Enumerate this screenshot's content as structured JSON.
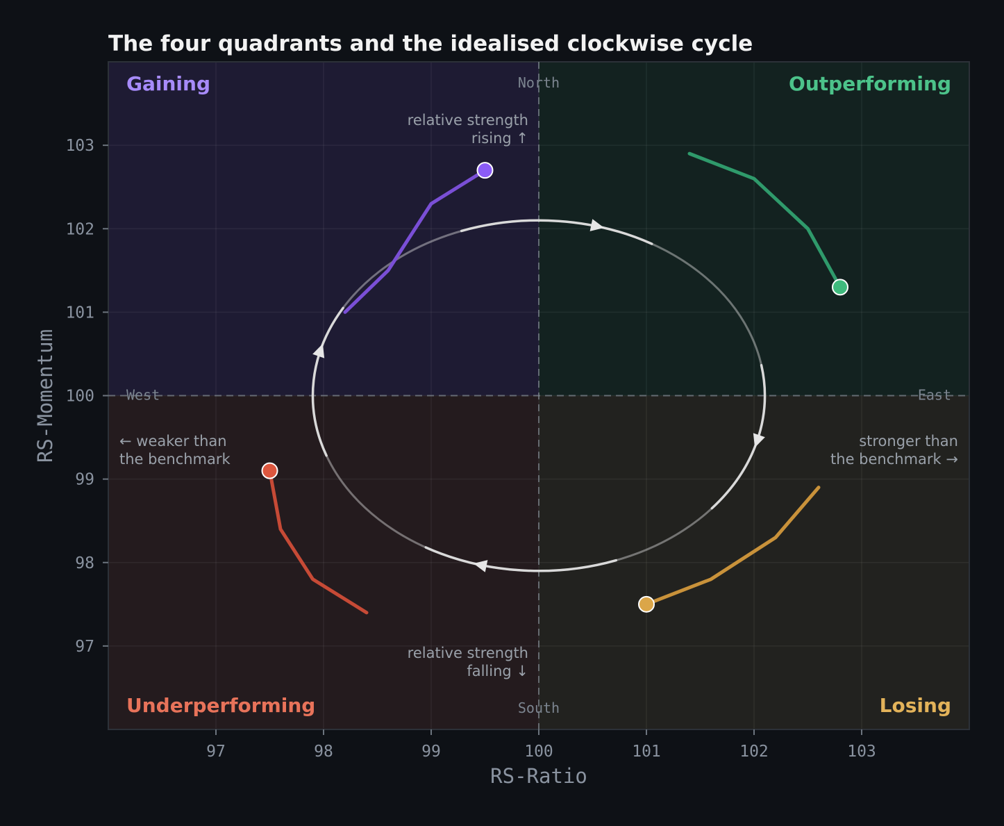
{
  "chart_data": {
    "type": "scatter",
    "title": "The four quadrants and the idealised clockwise cycle",
    "xlabel": "RS-Ratio",
    "ylabel": "RS-Momentum",
    "xlim": [
      96,
      104
    ],
    "ylim": [
      96,
      104
    ],
    "x_ticks": [
      97,
      98,
      99,
      100,
      101,
      102,
      103
    ],
    "y_ticks": [
      97,
      98,
      99,
      100,
      101,
      102,
      103
    ],
    "grid": true,
    "center": [
      100,
      100
    ],
    "quadrants": [
      {
        "name": "Gaining",
        "position": "top-left",
        "color": "#a78bfa",
        "fill": "#1e1b33"
      },
      {
        "name": "Outperforming",
        "position": "top-right",
        "color": "#4cc38a",
        "fill": "#132220"
      },
      {
        "name": "Underperforming",
        "position": "bottom-left",
        "color": "#e8735a",
        "fill": "#241b1e"
      },
      {
        "name": "Losing",
        "position": "bottom-right",
        "color": "#e3b35a",
        "fill": "#22221f"
      }
    ],
    "compass": {
      "north": "North",
      "south": "South",
      "east": "East",
      "west": "West"
    },
    "annotations": {
      "top": [
        "relative strength",
        "rising ↑"
      ],
      "bottom": [
        "relative strength",
        "falling ↓"
      ],
      "left": [
        "← weaker than",
        "the benchmark"
      ],
      "right": [
        "stronger than",
        "the benchmark →"
      ]
    },
    "cycle": {
      "cx": 100,
      "cy": 100,
      "rx": 2.1,
      "ry": 2.1,
      "direction": "clockwise",
      "color": "#d9d9d9"
    },
    "series": [
      {
        "color": "#7a4fd6",
        "head_color": "#8b5cf6",
        "points": [
          [
            98.2,
            101.0
          ],
          [
            98.6,
            101.5
          ],
          [
            99.0,
            102.3
          ],
          [
            99.5,
            102.7
          ]
        ]
      },
      {
        "color": "#2f9a6b",
        "head_color": "#3fba7d",
        "points": [
          [
            101.4,
            102.9
          ],
          [
            102.0,
            102.6
          ],
          [
            102.5,
            102.0
          ],
          [
            102.8,
            101.3
          ]
        ]
      },
      {
        "color": "#c9923a",
        "head_color": "#dba649",
        "points": [
          [
            102.6,
            98.9
          ],
          [
            102.2,
            98.3
          ],
          [
            101.6,
            97.8
          ],
          [
            101.0,
            97.5
          ]
        ]
      },
      {
        "color": "#c64a36",
        "head_color": "#dc573f",
        "points": [
          [
            98.4,
            97.4
          ],
          [
            97.9,
            97.8
          ],
          [
            97.6,
            98.4
          ],
          [
            97.5,
            99.1
          ]
        ]
      }
    ]
  }
}
